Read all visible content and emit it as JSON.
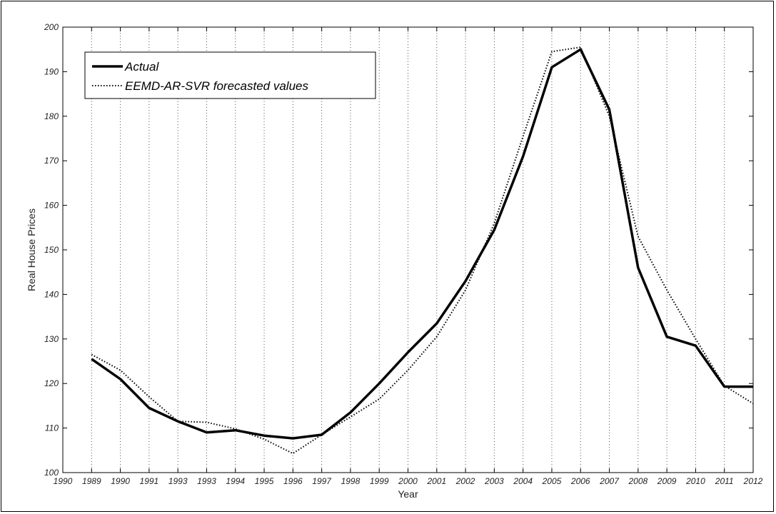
{
  "chart_data": {
    "type": "line",
    "xlabel": "Year",
    "ylabel": "Real House Prices",
    "ylim": [
      100,
      200
    ],
    "yticks": [
      100,
      110,
      120,
      130,
      140,
      150,
      160,
      170,
      180,
      190,
      200
    ],
    "x_tick_labels": [
      "1990",
      "1989",
      "1990",
      "1991",
      "1993",
      "1993",
      "1994",
      "1995",
      "1996",
      "1997",
      "1998",
      "1999",
      "2000",
      "2001",
      "2002",
      "2003",
      "2004",
      "2005",
      "2006",
      "2007",
      "2008",
      "2009",
      "2010",
      "2011",
      "2012"
    ],
    "grid": "vertical dotted",
    "legend_position": "top-left",
    "series": [
      {
        "name": "Actual",
        "style": "solid-thick",
        "values": [
          null,
          125.5,
          121.0,
          114.5,
          111.5,
          109.0,
          109.5,
          108.3,
          107.7,
          108.5,
          113.5,
          120.0,
          127.0,
          133.5,
          143.0,
          154.5,
          171.0,
          191.0,
          195.0,
          181.5,
          146.0,
          130.5,
          128.5,
          119.3,
          119.3
        ]
      },
      {
        "name": "EEMD-AR-SVR forecasted values",
        "style": "dotted",
        "values": [
          null,
          126.5,
          123.0,
          117.0,
          111.5,
          111.3,
          109.8,
          107.5,
          104.3,
          108.5,
          112.5,
          116.5,
          123.0,
          130.5,
          141.0,
          156.0,
          175.5,
          194.5,
          195.5,
          180.0,
          153.0,
          141.0,
          130.0,
          119.5,
          115.5
        ]
      }
    ]
  }
}
